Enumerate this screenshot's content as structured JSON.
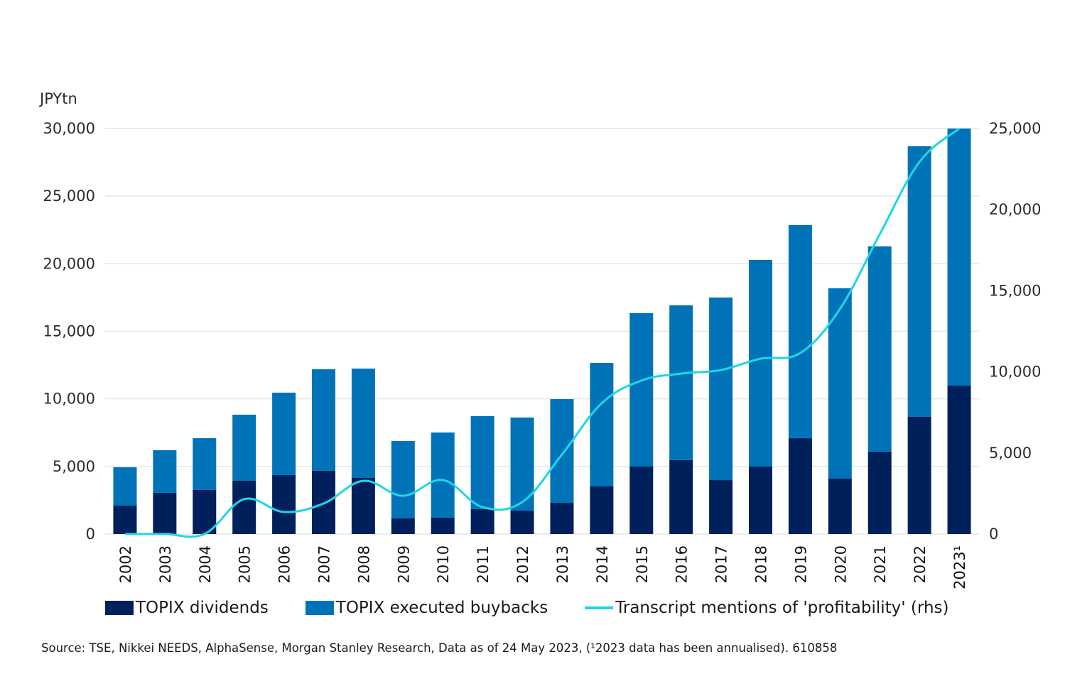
{
  "chart_data": {
    "type": "bar",
    "stacked": true,
    "title": "",
    "ylabel": "JPYtn",
    "y2label": "",
    "ylim": [
      0,
      30000
    ],
    "y2lim": [
      0,
      25000
    ],
    "yticks": [
      0,
      5000,
      10000,
      15000,
      20000,
      25000,
      30000
    ],
    "yticklabels": [
      "0",
      "5,000",
      "10,000",
      "15,000",
      "20,000",
      "25,000",
      "30,000"
    ],
    "y2ticks": [
      0,
      5000,
      10000,
      15000,
      20000,
      25000
    ],
    "y2ticklabels": [
      "0",
      "5,000",
      "10,000",
      "15,000",
      "20,000",
      "25,000"
    ],
    "grid": true,
    "legend_position": "bottom",
    "categories": [
      "2002",
      "2003",
      "2004",
      "2005",
      "2006",
      "2007",
      "2008",
      "2009",
      "2010",
      "2011",
      "2012",
      "2013",
      "2014",
      "2015",
      "2016",
      "2017",
      "2018",
      "2019",
      "2020",
      "2021",
      "2022",
      "2023¹"
    ],
    "series": [
      {
        "name": "TOPIX dividends",
        "type": "bar",
        "axis": "left",
        "color": "#00205b",
        "values": [
          2100,
          3050,
          3260,
          3940,
          4360,
          4680,
          4150,
          1160,
          1210,
          1840,
          1730,
          2310,
          3520,
          4990,
          5470,
          3990,
          4990,
          7090,
          4100,
          6100,
          8670,
          10980
        ]
      },
      {
        "name": "TOPIX executed buybacks",
        "type": "bar",
        "axis": "left",
        "color": "#0073b8",
        "values": [
          2840,
          3150,
          3830,
          4890,
          6100,
          7510,
          8090,
          5720,
          6300,
          6880,
          6890,
          7670,
          9140,
          11350,
          11450,
          13510,
          15290,
          15770,
          14080,
          15180,
          20020,
          19020
        ]
      },
      {
        "name": "Transcript mentions of 'profitability' (rhs)",
        "type": "line",
        "axis": "right",
        "color": "#1fd6e6",
        "values": [
          0,
          0,
          0,
          2150,
          1360,
          1880,
          3280,
          2360,
          3330,
          1660,
          1970,
          4900,
          8060,
          9460,
          9890,
          10110,
          10810,
          11160,
          13880,
          18480,
          22940,
          25000
        ]
      }
    ]
  },
  "legend": {
    "items": [
      {
        "label": "TOPIX dividends",
        "color": "#00205b",
        "kind": "box"
      },
      {
        "label": "TOPIX executed buybacks",
        "color": "#0073b8",
        "kind": "box"
      },
      {
        "label": "Transcript mentions of 'profitability' (rhs)",
        "color": "#1fd6e6",
        "kind": "line"
      }
    ]
  },
  "source": "Source: TSE, Nikkei NEEDS, AlphaSense, Morgan Stanley Research, Data as of 24 May 2023, (¹2023 data has been annualised). 610858",
  "colors": {
    "gridline": "#e6e6e6",
    "axis_text": "#2b2b2b"
  }
}
